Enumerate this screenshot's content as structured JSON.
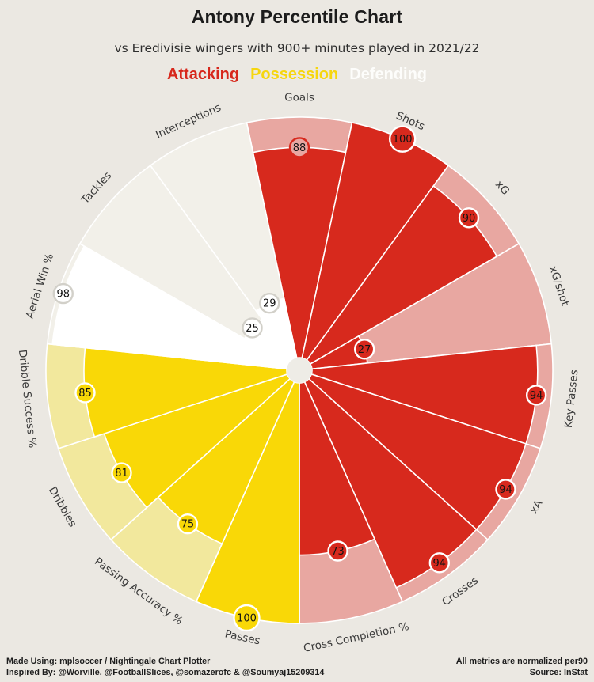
{
  "header": {
    "title": "Antony Percentile Chart",
    "subtitle": "vs Eredivisie wingers with 900+ minutes played in 2021/22"
  },
  "legend": [
    {
      "label": "Attacking",
      "color": "#d7281c"
    },
    {
      "label": "Possession",
      "color": "#f6d60e"
    },
    {
      "label": "Defending",
      "color": "#fdfdfb"
    }
  ],
  "footer": {
    "left_line1": "Made Using: mplsoccer / Nightingale Chart Plotter",
    "left_line2": "Inspired By: @Worville, @FootballSlices, @somazerofc & @Soumyaj15209314",
    "right_line1": "All metrics are normalized per90",
    "right_line2": "Source: InStat"
  },
  "colors": {
    "background": "#ebe8e2",
    "hub": "#eeece6",
    "separator": "#ffffff",
    "label_text": "#3a3a3a",
    "value_text": "#141414",
    "groups": {
      "attacking": {
        "solid": "#d7291d",
        "tint": "#e8a7a1",
        "ring": "#ffffff"
      },
      "possession": {
        "solid": "#f9d807",
        "tint": "#f2e89d",
        "ring": "#ffffff"
      },
      "defending": {
        "solid": "#ffffff",
        "tint": "#f2f0e9",
        "ring": "#d2d0c9"
      }
    },
    "goals_bubble": {
      "fill": "#e8a7a1",
      "stroke": "#d7291d"
    }
  },
  "chart_data": {
    "type": "bar",
    "variant": "nightingale-pizza",
    "title": "Antony Percentile Chart",
    "subtitle": "vs Eredivisie wingers with 900+ minutes played in 2021/22",
    "scale_min": 0,
    "scale_max": 100,
    "units": "percentile",
    "categories": [
      "Goals",
      "Shots",
      "xG",
      "xG/shot",
      "Key Passes",
      "xA",
      "Crosses",
      "Cross Completion %",
      "Passes",
      "Passing Accuracy %",
      "Dribbles",
      "Dribble Success %",
      "Aerial Win %",
      "Tackles",
      "Interceptions"
    ],
    "values": [
      88,
      100,
      90,
      27,
      94,
      94,
      94,
      73,
      100,
      75,
      81,
      85,
      98,
      25,
      29
    ],
    "slices": [
      {
        "label": "Goals",
        "value": 88,
        "group": "attacking"
      },
      {
        "label": "Shots",
        "value": 100,
        "group": "attacking"
      },
      {
        "label": "xG",
        "value": 90,
        "group": "attacking"
      },
      {
        "label": "xG/shot",
        "value": 27,
        "group": "attacking"
      },
      {
        "label": "Key Passes",
        "value": 94,
        "group": "attacking"
      },
      {
        "label": "xA",
        "value": 94,
        "group": "attacking"
      },
      {
        "label": "Crosses",
        "value": 94,
        "group": "attacking"
      },
      {
        "label": "Cross Completion %",
        "value": 73,
        "group": "attacking"
      },
      {
        "label": "Passes",
        "value": 100,
        "group": "possession"
      },
      {
        "label": "Passing Accuracy %",
        "value": 75,
        "group": "possession"
      },
      {
        "label": "Dribbles",
        "value": 81,
        "group": "possession"
      },
      {
        "label": "Dribble Success %",
        "value": 85,
        "group": "possession"
      },
      {
        "label": "Aerial Win %",
        "value": 98,
        "group": "defending"
      },
      {
        "label": "Tackles",
        "value": 25,
        "group": "defending"
      },
      {
        "label": "Interceptions",
        "value": 29,
        "group": "defending"
      }
    ],
    "legend_entries": [
      "Attacking",
      "Possession",
      "Defending"
    ],
    "legend_position": "top-center"
  }
}
